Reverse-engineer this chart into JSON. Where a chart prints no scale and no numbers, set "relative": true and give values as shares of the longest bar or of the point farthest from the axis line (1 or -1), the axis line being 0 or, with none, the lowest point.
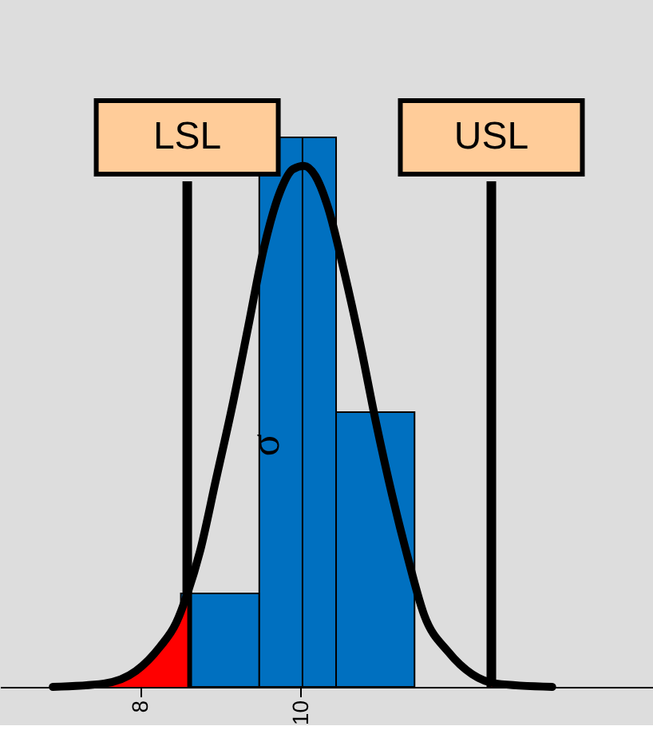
{
  "chart_data": {
    "type": "histogram",
    "relative": true,
    "bins": [
      8.5,
      9.48,
      10.44,
      11.42
    ],
    "values": [
      0.17,
      1,
      0.5
    ],
    "color": "#0070c0",
    "series": [
      {
        "type": "line",
        "color": "#000000",
        "x": [
          6.9,
          7.54,
          7.94,
          8.24,
          8.44,
          8.58,
          8.74,
          8.94,
          9.14,
          9.34,
          9.54,
          9.74,
          9.9,
          10.04,
          10.18,
          10.34,
          10.54,
          10.74,
          10.94,
          11.14,
          11.34,
          11.54,
          11.84,
          12.14,
          12.44,
          13.14
        ],
        "values": [
          0,
          0.006,
          0.029,
          0.073,
          0.116,
          0.169,
          0.247,
          0.378,
          0.509,
          0.654,
          0.8,
          0.901,
          0.942,
          0.948,
          0.93,
          0.872,
          0.756,
          0.625,
          0.48,
          0.349,
          0.233,
          0.131,
          0.064,
          0.023,
          0.006,
          0
        ]
      },
      {
        "type": "area",
        "color": "#ff0000",
        "x": [
          7.54,
          7.94,
          8.24,
          8.44,
          8.58
        ],
        "values": [
          0.006,
          0.029,
          0.073,
          0.116,
          0.169
        ]
      },
      {
        "type": "area",
        "color": "#ff0000",
        "x": [
          12.38,
          12.44,
          12.6
        ],
        "values": [
          0.008,
          0.006,
          0.003
        ]
      }
    ],
    "xlim": [
      6.24,
      14.4
    ],
    "xticks": [
      8,
      10
    ],
    "ref_lines": [
      {
        "axis": "x",
        "value": 8.58,
        "label": "LSL",
        "color": "#000000"
      },
      {
        "axis": "x",
        "value": 12.38,
        "label": "USL",
        "color": "#000000"
      },
      {
        "axis": "x",
        "value": 10.02,
        "label": null,
        "color": "#000000"
      }
    ],
    "annotations": [
      {
        "text": "σ",
        "x": 9.56,
        "y": 0.44
      }
    ]
  }
}
